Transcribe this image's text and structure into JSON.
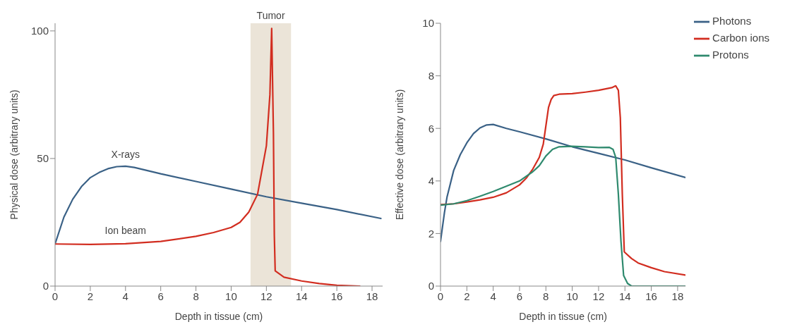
{
  "chart_data": [
    {
      "type": "line",
      "xlabel": "Depth in tissue (cm)",
      "ylabel": "Physical dose (arbitrary units)",
      "xlim": [
        0,
        18.6
      ],
      "xticks": [
        0,
        2,
        4,
        6,
        8,
        10,
        12,
        14,
        16,
        18
      ],
      "ylim": [
        0,
        103
      ],
      "yticks": [
        0,
        50,
        100
      ],
      "grid": false,
      "legend": false,
      "marker": "none",
      "line_style": "solid",
      "bands": [
        {
          "axis": "x",
          "from": 11.1,
          "to": 13.4,
          "label": "Tumor",
          "color": "#ebe4d8"
        }
      ],
      "series": [
        {
          "name": "X-rays",
          "color": "#3a6186",
          "x": [
            0,
            0.5,
            1,
            1.5,
            2,
            2.5,
            3,
            3.5,
            4,
            4.5,
            6,
            8,
            10,
            12,
            14,
            16,
            18.5
          ],
          "values": [
            16.5,
            27,
            34,
            39,
            42.5,
            44.5,
            46,
            46.8,
            47,
            46.5,
            44,
            41,
            38,
            35,
            32.5,
            30,
            26.5
          ]
        },
        {
          "name": "Ion beam",
          "color": "#d22d20",
          "x": [
            0,
            2,
            4,
            6,
            8,
            9,
            10,
            10.5,
            11,
            11.5,
            12,
            12.2,
            12.3,
            12.4,
            12.45,
            12.5,
            13,
            14,
            15,
            16,
            17.3
          ],
          "values": [
            16.5,
            16.3,
            16.6,
            17.5,
            19.5,
            21,
            23,
            25,
            29,
            36,
            55,
            75,
            101,
            60,
            20,
            6,
            3.5,
            2,
            1,
            0.3,
            0
          ]
        }
      ]
    },
    {
      "type": "line",
      "xlabel": "Depth in tissue (cm)",
      "ylabel": "Effective dose (arbitrary units)",
      "xlim": [
        0,
        18.6
      ],
      "xticks": [
        0,
        2,
        4,
        6,
        8,
        10,
        12,
        14,
        16,
        18
      ],
      "ylim": [
        0,
        10
      ],
      "yticks": [
        0,
        2,
        4,
        6,
        8,
        10
      ],
      "grid": false,
      "legend": "top right",
      "marker": "none",
      "line_style": "solid",
      "series": [
        {
          "name": "Photons",
          "color": "#3a6186",
          "x": [
            0,
            0.3,
            0.5,
            1,
            1.5,
            2,
            2.5,
            3,
            3.5,
            4,
            5,
            6,
            8,
            10,
            12,
            14,
            16,
            18.6
          ],
          "values": [
            1.7,
            2.8,
            3.4,
            4.4,
            5.0,
            5.45,
            5.8,
            6.02,
            6.13,
            6.15,
            6.0,
            5.87,
            5.6,
            5.3,
            5.05,
            4.8,
            4.5,
            4.13
          ]
        },
        {
          "name": "Carbon ions",
          "color": "#d22d20",
          "x": [
            0,
            1,
            2,
            3,
            4,
            5,
            6,
            6.5,
            7,
            7.5,
            7.8,
            8,
            8.2,
            8.4,
            8.6,
            9,
            10,
            11,
            12,
            13,
            13.3,
            13.5,
            13.65,
            13.8,
            13.95,
            14.5,
            15,
            16,
            17,
            18.6
          ],
          "values": [
            3.1,
            3.13,
            3.2,
            3.28,
            3.38,
            3.55,
            3.85,
            4.1,
            4.45,
            4.9,
            5.4,
            6.1,
            6.8,
            7.1,
            7.25,
            7.3,
            7.32,
            7.38,
            7.45,
            7.55,
            7.62,
            7.45,
            6.4,
            3.5,
            1.3,
            1.05,
            0.88,
            0.7,
            0.55,
            0.42
          ]
        },
        {
          "name": "Protons",
          "color": "#2f8a6e",
          "x": [
            0,
            1,
            2,
            3,
            4,
            5,
            6,
            7,
            7.5,
            8,
            8.5,
            9,
            10,
            11,
            12,
            12.8,
            13.1,
            13.3,
            13.5,
            13.7,
            13.9,
            14.2,
            14.5,
            18.6
          ],
          "values": [
            3.08,
            3.13,
            3.25,
            3.42,
            3.6,
            3.8,
            4.0,
            4.35,
            4.58,
            4.95,
            5.2,
            5.3,
            5.32,
            5.3,
            5.27,
            5.28,
            5.2,
            4.9,
            3.5,
            1.7,
            0.4,
            0.1,
            0,
            0
          ]
        }
      ]
    }
  ]
}
